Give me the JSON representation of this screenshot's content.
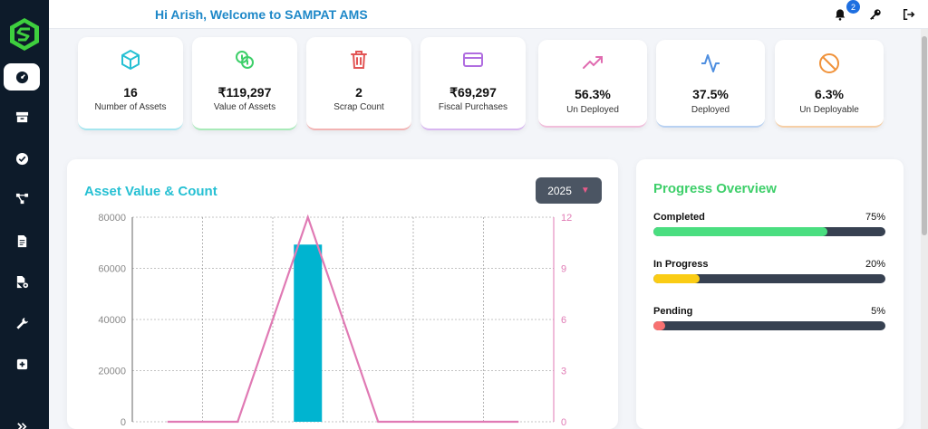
{
  "header": {
    "welcome": "Hi Arish, Welcome to SAMPAT AMS",
    "notification_count": "2"
  },
  "sidebar": {
    "items": [
      {
        "name": "dashboard",
        "icon": "gauge-icon",
        "active": true
      },
      {
        "name": "assets",
        "icon": "archive-icon"
      },
      {
        "name": "approvals",
        "icon": "check-circle-icon"
      },
      {
        "name": "network",
        "icon": "hierarchy-icon"
      },
      {
        "name": "documents",
        "icon": "document-icon"
      },
      {
        "name": "file-settings",
        "icon": "file-gear-icon"
      },
      {
        "name": "maintenance",
        "icon": "wrench-icon"
      },
      {
        "name": "add",
        "icon": "plus-square-icon"
      }
    ]
  },
  "stats": [
    {
      "value": "16",
      "label": "Number of Assets",
      "icon": "cube-icon",
      "color": "#26c0d3"
    },
    {
      "value": "₹119,297",
      "label": "Value of Assets",
      "icon": "coins-icon",
      "color": "#3ecf6a"
    },
    {
      "value": "2",
      "label": "Scrap Count",
      "icon": "trash-icon",
      "color": "#e25555"
    },
    {
      "value": "₹69,297",
      "label": "Fiscal Purchases",
      "icon": "credit-card-icon",
      "color": "#b06de0"
    },
    {
      "value": "56.3%",
      "label": "Un Deployed",
      "icon": "trend-up-icon",
      "color": "#e06bb0"
    },
    {
      "value": "37.5%",
      "label": "Deployed",
      "icon": "pulse-icon",
      "color": "#4f8fe0"
    },
    {
      "value": "6.3%",
      "label": "Un Deployable",
      "icon": "ban-icon",
      "color": "#f0923a"
    }
  ],
  "chart": {
    "title": "Asset Value & Count",
    "year": "2025"
  },
  "chart_data": {
    "type": "bar",
    "x_count": 6,
    "bar_values": [
      0,
      0,
      69297,
      0,
      0,
      0
    ],
    "line_values": [
      0,
      0,
      12,
      0,
      0,
      0
    ],
    "y_left_ticks": [
      "80000",
      "60000",
      "40000",
      "20000",
      "0"
    ],
    "y_right_ticks": [
      "12",
      "9",
      "6",
      "3",
      "0"
    ],
    "ylim_left": [
      0,
      80000
    ],
    "ylim_right": [
      0,
      12
    ],
    "bar_color": "#00b4d0",
    "line_color": "#e07ab4",
    "grid": true
  },
  "progress": {
    "title": "Progress Overview",
    "items": [
      {
        "name": "Completed",
        "pct": "75%",
        "value": 0.75,
        "color": "#4ade80"
      },
      {
        "name": "In Progress",
        "pct": "20%",
        "value": 0.2,
        "color": "#facc15"
      },
      {
        "name": "Pending",
        "pct": "5%",
        "value": 0.05,
        "color": "#f87171"
      }
    ]
  }
}
